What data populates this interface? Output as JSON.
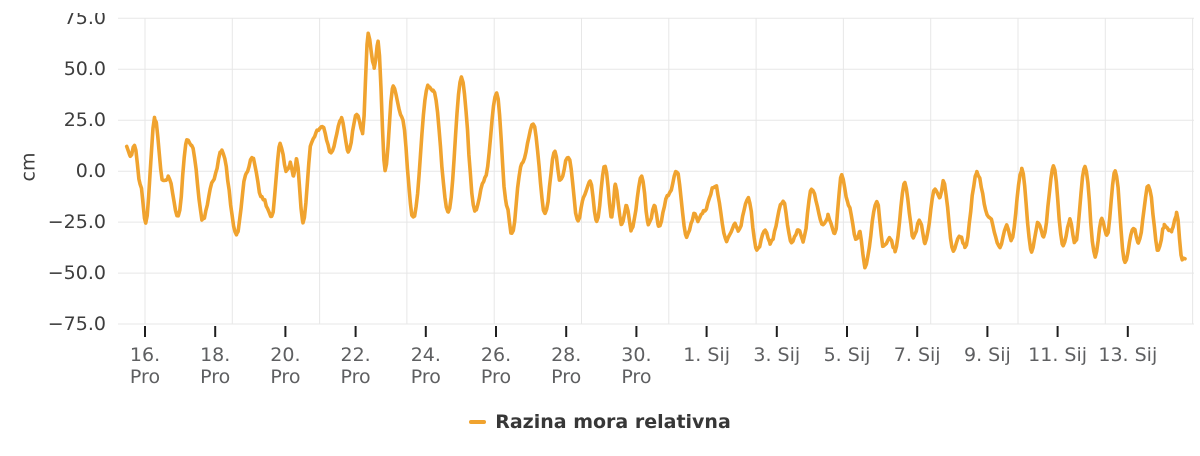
{
  "chart_data": {
    "type": "line",
    "title": "",
    "ylabel": "cm",
    "unit": "cm",
    "grid": {
      "horizontal": true,
      "vertical": true
    },
    "legend_position": "bottom",
    "y_axis": {
      "min": -75,
      "max": 75,
      "tick_interval": 25,
      "tick_labels": [
        "75.0",
        "50.0",
        "25.0",
        "0.0",
        "−25.0",
        "−50.0",
        "−75.0"
      ]
    },
    "x_axis": {
      "epoch": "days since 16 Dec 00:00",
      "tick_days": [
        0,
        2,
        4,
        6,
        8,
        10,
        12,
        14,
        16,
        18,
        20,
        22,
        24,
        26,
        28
      ],
      "tick_labels": [
        [
          "16.",
          "Pro"
        ],
        [
          "18.",
          "Pro"
        ],
        [
          "20.",
          "Pro"
        ],
        [
          "22.",
          "Pro"
        ],
        [
          "24.",
          "Pro"
        ],
        [
          "26.",
          "Pro"
        ],
        [
          "28.",
          "Pro"
        ],
        [
          "30.",
          "Pro"
        ],
        [
          "1. Sij"
        ],
        [
          "3. Sij"
        ],
        [
          "5. Sij"
        ],
        [
          "7. Sij"
        ],
        [
          "9. Sij"
        ],
        [
          "11. Sij"
        ],
        [
          "13. Sij"
        ]
      ],
      "range_days": [
        -0.77,
        29.88
      ]
    },
    "series": [
      {
        "name": "Razina mora relativna",
        "color": "#f0a32f",
        "sampling_hours": 1,
        "noise_cm": 0.8,
        "anchors": [
          [
            -0.52,
            12
          ],
          [
            -0.42,
            7
          ],
          [
            -0.3,
            13
          ],
          [
            -0.14,
            -6
          ],
          [
            0.02,
            -25
          ],
          [
            0.28,
            26
          ],
          [
            0.52,
            -5
          ],
          [
            0.66,
            -3
          ],
          [
            0.95,
            -22
          ],
          [
            1.19,
            15
          ],
          [
            1.33,
            13
          ],
          [
            1.65,
            -24
          ],
          [
            1.93,
            -5
          ],
          [
            2.19,
            10
          ],
          [
            2.61,
            -31
          ],
          [
            2.88,
            -2
          ],
          [
            3.05,
            7
          ],
          [
            3.33,
            -13
          ],
          [
            3.61,
            -22
          ],
          [
            3.85,
            13
          ],
          [
            4.04,
            0
          ],
          [
            4.14,
            4
          ],
          [
            4.23,
            -3
          ],
          [
            4.32,
            6
          ],
          [
            4.5,
            -25
          ],
          [
            4.75,
            14
          ],
          [
            4.9,
            20
          ],
          [
            5.05,
            22
          ],
          [
            5.3,
            9
          ],
          [
            5.6,
            26
          ],
          [
            5.79,
            10
          ],
          [
            6.03,
            28
          ],
          [
            6.2,
            19
          ],
          [
            6.36,
            67
          ],
          [
            6.53,
            51
          ],
          [
            6.64,
            63
          ],
          [
            6.84,
            1
          ],
          [
            7.07,
            41
          ],
          [
            7.31,
            27
          ],
          [
            7.64,
            -23
          ],
          [
            8.07,
            42
          ],
          [
            8.21,
            40
          ],
          [
            8.64,
            -20
          ],
          [
            9.02,
            46
          ],
          [
            9.4,
            -19
          ],
          [
            9.68,
            -4
          ],
          [
            10.02,
            39
          ],
          [
            10.3,
            -16
          ],
          [
            10.45,
            -31
          ],
          [
            10.73,
            3
          ],
          [
            11.06,
            23
          ],
          [
            11.4,
            -21
          ],
          [
            11.68,
            10
          ],
          [
            11.82,
            -5
          ],
          [
            12.06,
            7
          ],
          [
            12.34,
            -25
          ],
          [
            12.49,
            -13
          ],
          [
            12.68,
            -5
          ],
          [
            12.87,
            -24
          ],
          [
            13.11,
            3
          ],
          [
            13.3,
            -23
          ],
          [
            13.4,
            -7
          ],
          [
            13.58,
            -26
          ],
          [
            13.72,
            -17
          ],
          [
            13.86,
            -29
          ],
          [
            14.15,
            -2
          ],
          [
            14.34,
            -26
          ],
          [
            14.53,
            -17
          ],
          [
            14.63,
            -27
          ],
          [
            14.91,
            -12
          ],
          [
            15.15,
            0
          ],
          [
            15.43,
            -32
          ],
          [
            15.67,
            -21
          ],
          [
            15.76,
            -24
          ],
          [
            15.91,
            -20
          ],
          [
            16.24,
            -7
          ],
          [
            16.57,
            -34
          ],
          [
            16.81,
            -26
          ],
          [
            16.9,
            -29
          ],
          [
            17.19,
            -13
          ],
          [
            17.43,
            -39
          ],
          [
            17.67,
            -29
          ],
          [
            17.81,
            -35
          ],
          [
            18.18,
            -15
          ],
          [
            18.42,
            -35
          ],
          [
            18.61,
            -29
          ],
          [
            18.75,
            -34
          ],
          [
            18.99,
            -9
          ],
          [
            19.32,
            -27
          ],
          [
            19.46,
            -22
          ],
          [
            19.65,
            -31
          ],
          [
            19.85,
            -2
          ],
          [
            20.04,
            -16
          ],
          [
            20.27,
            -34
          ],
          [
            20.37,
            -30
          ],
          [
            20.51,
            -47
          ],
          [
            20.85,
            -15
          ],
          [
            21.04,
            -37
          ],
          [
            21.23,
            -33
          ],
          [
            21.37,
            -39
          ],
          [
            21.65,
            -6
          ],
          [
            21.89,
            -32
          ],
          [
            22.08,
            -24
          ],
          [
            22.22,
            -35
          ],
          [
            22.51,
            -9
          ],
          [
            22.65,
            -13
          ],
          [
            22.74,
            -5
          ],
          [
            23.03,
            -39
          ],
          [
            23.22,
            -32
          ],
          [
            23.36,
            -37
          ],
          [
            23.7,
            -1
          ],
          [
            24.03,
            -22
          ],
          [
            24.36,
            -37
          ],
          [
            24.55,
            -27
          ],
          [
            24.68,
            -34
          ],
          [
            24.98,
            1
          ],
          [
            25.26,
            -39
          ],
          [
            25.45,
            -25
          ],
          [
            25.6,
            -32
          ],
          [
            25.88,
            2
          ],
          [
            26.16,
            -37
          ],
          [
            26.35,
            -24
          ],
          [
            26.5,
            -35
          ],
          [
            26.78,
            2
          ],
          [
            27.07,
            -42
          ],
          [
            27.26,
            -23
          ],
          [
            27.4,
            -32
          ],
          [
            27.64,
            0
          ],
          [
            27.92,
            -44
          ],
          [
            28.16,
            -28
          ],
          [
            28.3,
            -35
          ],
          [
            28.59,
            -7
          ],
          [
            28.87,
            -39
          ],
          [
            29.04,
            -27
          ],
          [
            29.25,
            -29
          ],
          [
            29.39,
            -21
          ],
          [
            29.55,
            -43
          ],
          [
            29.63,
            -43
          ]
        ]
      }
    ],
    "colors": {
      "grid": "#e7e7e7",
      "tick_mark": "#1f1f1f",
      "y_label": "#3d3d3d",
      "x_label": "#5e5f61",
      "legend_text": "#373737"
    }
  }
}
